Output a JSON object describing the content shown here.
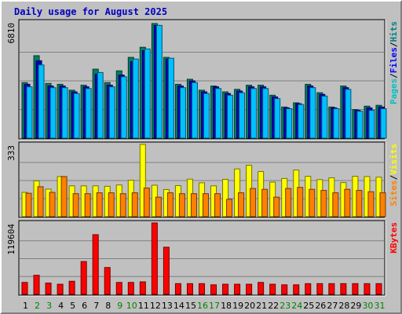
{
  "chart_data": [
    {
      "type": "bar",
      "title": "Daily usage for August 2025",
      "categories": [
        "1",
        "2",
        "3",
        "4",
        "5",
        "6",
        "7",
        "8",
        "9",
        "10",
        "11",
        "12",
        "13",
        "14",
        "15",
        "16",
        "17",
        "18",
        "19",
        "20",
        "21",
        "22",
        "23",
        "24",
        "25",
        "26",
        "27",
        "28",
        "29",
        "30",
        "31"
      ],
      "weekend_days": [
        "2",
        "3",
        "9",
        "10",
        "16",
        "17",
        "23",
        "24",
        "30",
        "31"
      ],
      "ymax_label": "6810",
      "right_legend": [
        {
          "text": "Pages",
          "color": "#00c0c0"
        },
        {
          "text": "/",
          "color": "#000000"
        },
        {
          "text": "Files",
          "color": "#0000ff"
        },
        {
          "text": "/",
          "color": "#000000"
        },
        {
          "text": "Hits",
          "color": "#008080"
        }
      ],
      "series": [
        {
          "name": "Hits",
          "color": "#008060",
          "values": [
            3300,
            4900,
            3250,
            3200,
            2850,
            3150,
            4100,
            3300,
            4000,
            4800,
            5400,
            6810,
            4800,
            3200,
            3500,
            2850,
            3100,
            2750,
            2900,
            3150,
            3150,
            2550,
            1850,
            2100,
            3200,
            2700,
            1850,
            3100,
            1700,
            1900,
            1950
          ]
        },
        {
          "name": "Files",
          "color": "#0000c0",
          "values": [
            3200,
            4600,
            3100,
            3100,
            2750,
            3050,
            3800,
            3150,
            3750,
            4550,
            5200,
            6700,
            4700,
            3100,
            3400,
            2750,
            3050,
            2650,
            2800,
            3050,
            3050,
            2450,
            1800,
            2050,
            3100,
            2600,
            1800,
            3000,
            1650,
            1800,
            1850
          ]
        },
        {
          "name": "Pages",
          "color": "#00c0ff",
          "values": [
            3050,
            4350,
            3000,
            3000,
            2650,
            2950,
            3900,
            3050,
            3650,
            4700,
            5300,
            6700,
            4750,
            3000,
            3300,
            2650,
            2950,
            2550,
            2700,
            2950,
            2950,
            2350,
            1750,
            2000,
            3000,
            2500,
            1750,
            2900,
            1600,
            1650,
            1750
          ]
        }
      ]
    },
    {
      "type": "bar",
      "ymax_label": "333",
      "right_legend": [
        {
          "text": "Sites",
          "color": "#ff8000"
        },
        {
          "text": "/",
          "color": "#000000"
        },
        {
          "text": "Visits",
          "color": "#ffff00"
        }
      ],
      "series": [
        {
          "name": "Visits",
          "color": "#ffff00",
          "values": [
            112,
            165,
            127,
            185,
            142,
            142,
            142,
            140,
            146,
            168,
            333,
            145,
            125,
            143,
            173,
            156,
            142,
            172,
            220,
            237,
            208,
            159,
            176,
            215,
            186,
            171,
            179,
            157,
            186,
            185,
            182
          ]
        },
        {
          "name": "Sites",
          "color": "#ff8000",
          "values": [
            108,
            138,
            112,
            185,
            106,
            106,
            110,
            110,
            106,
            110,
            132,
            90,
            110,
            106,
            106,
            106,
            106,
            80,
            110,
            130,
            126,
            90,
            130,
            135,
            126,
            121,
            110,
            126,
            121,
            115,
            110
          ]
        }
      ]
    },
    {
      "type": "bar",
      "ymax_label": "119604",
      "right_legend": [
        {
          "text": "KBytes",
          "color": "#ff0000"
        }
      ],
      "series": [
        {
          "name": "KBytes",
          "color": "#ff0000",
          "values": [
            20000,
            32000,
            19000,
            17000,
            22000,
            55000,
            100000,
            45000,
            20000,
            20000,
            21000,
            119604,
            79000,
            18000,
            18000,
            18000,
            16000,
            17000,
            17000,
            17000,
            20000,
            17000,
            16000,
            16000,
            18000,
            18000,
            18000,
            18000,
            18000,
            18000,
            18000
          ]
        }
      ]
    }
  ]
}
